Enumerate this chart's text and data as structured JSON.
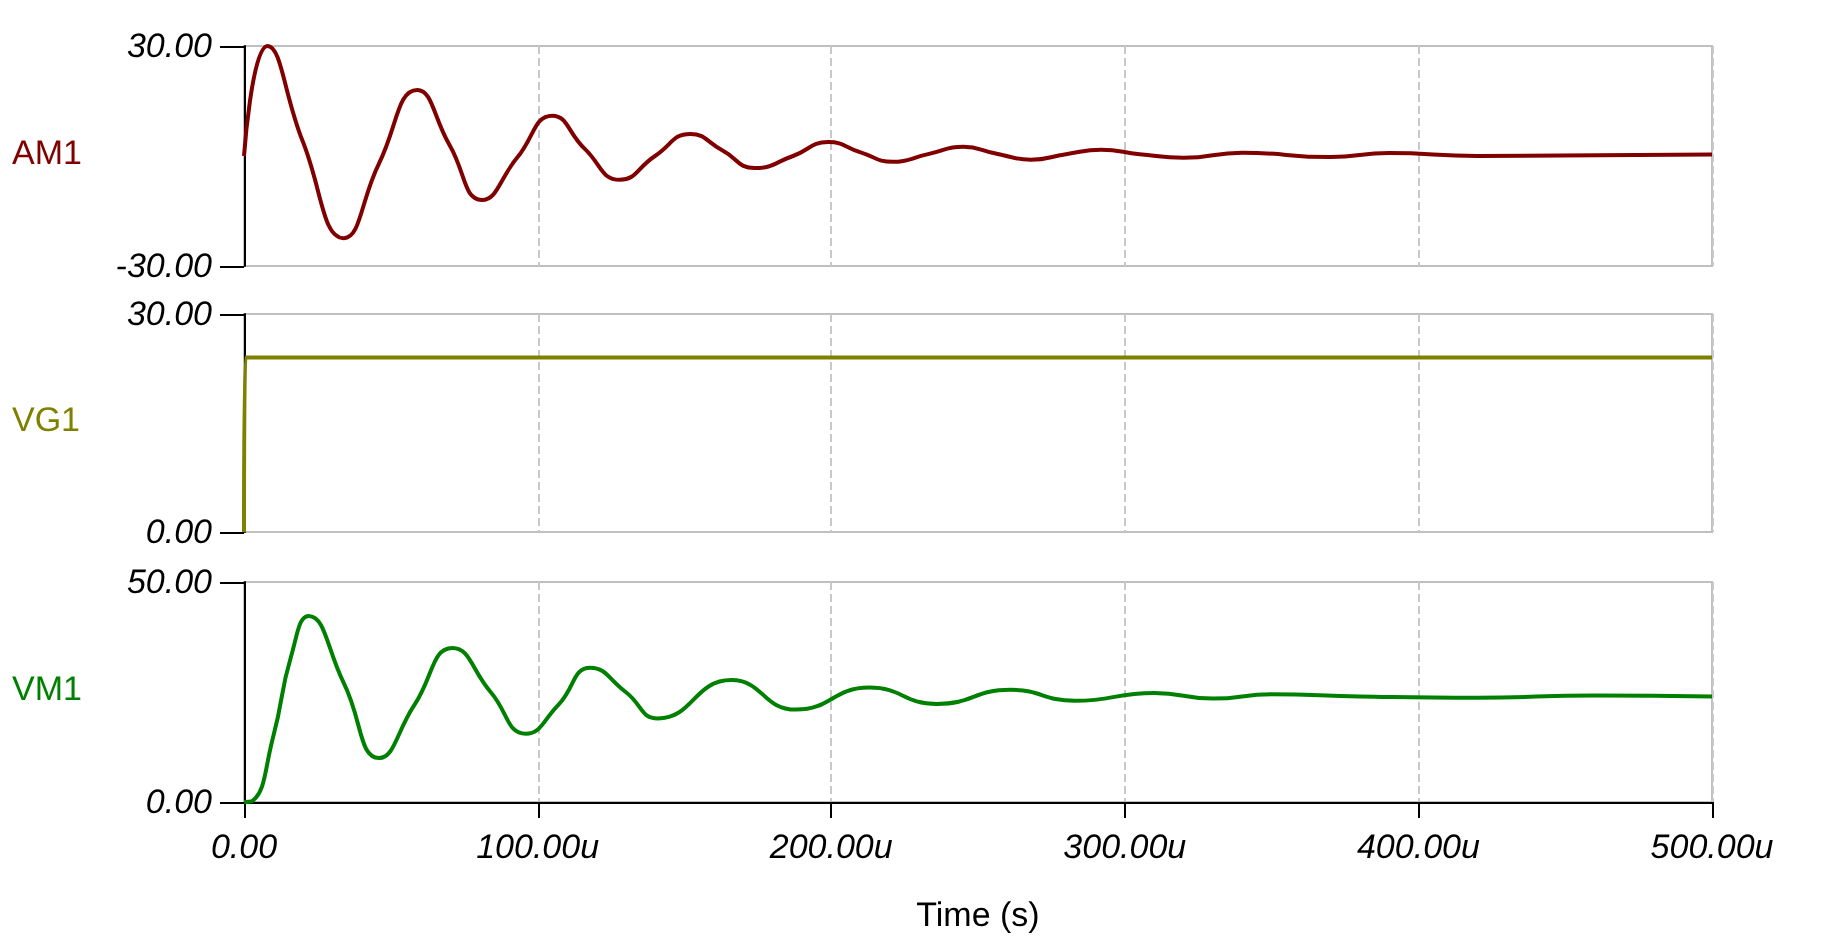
{
  "chart_data": [
    {
      "type": "line",
      "ylabel": "AM1",
      "xlim": [
        0,
        500
      ],
      "ylim": [
        -30,
        30
      ],
      "yticks": [
        {
          "value": -30,
          "label": "-30.00"
        },
        {
          "value": 30,
          "label": "30.00"
        }
      ],
      "xticks": [
        0,
        100,
        200,
        300,
        400,
        500
      ],
      "grid": "x",
      "tick_labels": "y",
      "series": [
        {
          "color": "#800000",
          "x": [
            0,
            8,
            20,
            34,
            46,
            59,
            70,
            81,
            93,
            105,
            116,
            128,
            140,
            152,
            163,
            174,
            187,
            199,
            210,
            221,
            233,
            245,
            256,
            268,
            280,
            292,
            305,
            320,
            340,
            370,
            390,
            420,
            500
          ],
          "values": [
            0,
            30,
            4,
            -22.4,
            -2,
            18,
            3,
            -12,
            -0.5,
            11,
            2,
            -6.5,
            0,
            6,
            1.5,
            -3.3,
            0,
            3.8,
            1,
            -1.6,
            0.5,
            2.5,
            0.7,
            -1,
            0.5,
            1.7,
            0.5,
            -0.5,
            0.9,
            -0.3,
            0.8,
            0,
            0.4
          ]
        }
      ]
    },
    {
      "type": "line",
      "ylabel": "VG1",
      "xlim": [
        0,
        500
      ],
      "ylim": [
        0,
        30
      ],
      "yticks": [
        {
          "value": 0,
          "label": "0.00"
        },
        {
          "value": 30,
          "label": "30.00"
        }
      ],
      "xticks": [
        0,
        100,
        200,
        300,
        400,
        500
      ],
      "grid": "x",
      "tick_labels": "y",
      "series": [
        {
          "color": "#808000",
          "x": [
            0,
            0.5,
            500
          ],
          "values": [
            0,
            24,
            24
          ]
        }
      ]
    },
    {
      "type": "line",
      "ylabel": "VM1",
      "xlabel": "Time (s)",
      "xlim": [
        0,
        500
      ],
      "ylim": [
        0,
        50
      ],
      "yticks": [
        {
          "value": 0,
          "label": "0.00"
        },
        {
          "value": 50,
          "label": "50.00"
        }
      ],
      "xticks": [
        {
          "value": 0,
          "label": "0.00"
        },
        {
          "value": 100,
          "label": "100.00u"
        },
        {
          "value": 200,
          "label": "200.00u"
        },
        {
          "value": 300,
          "label": "300.00u"
        },
        {
          "value": 400,
          "label": "400.00u"
        },
        {
          "value": 500,
          "label": "500.00u"
        }
      ],
      "grid": "x",
      "series": [
        {
          "color": "#008000",
          "x": [
            0,
            3,
            10,
            16,
            22,
            34,
            46,
            58,
            71,
            84,
            96,
            107,
            118,
            130,
            141,
            166,
            188,
            213,
            236,
            261,
            283,
            310,
            330,
            350,
            380,
            420,
            460,
            500
          ],
          "values": [
            0,
            0.3,
            15,
            33,
            42.3,
            27,
            10,
            22,
            35,
            25,
            15.5,
            22,
            30.5,
            25,
            19,
            27.7,
            21,
            26,
            22.3,
            25.5,
            23,
            24.8,
            23.5,
            24.5,
            24,
            23.7,
            24.2,
            24
          ]
        }
      ]
    }
  ]
}
